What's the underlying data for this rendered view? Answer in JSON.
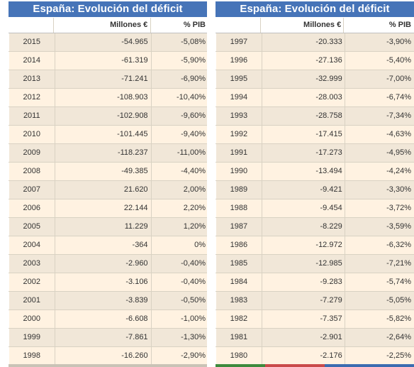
{
  "left_table": {
    "title": "España: Evolución del déficit",
    "columns": [
      "",
      "Millones €",
      "% PIB"
    ],
    "rows": [
      [
        "2015",
        "-54.965",
        "-5,08%"
      ],
      [
        "2014",
        "-61.319",
        "-5,90%"
      ],
      [
        "2013",
        "-71.241",
        "-6,90%"
      ],
      [
        "2012",
        "-108.903",
        "-10,40%"
      ],
      [
        "2011",
        "-102.908",
        "-9,60%"
      ],
      [
        "2010",
        "-101.445",
        "-9,40%"
      ],
      [
        "2009",
        "-118.237",
        "-11,00%"
      ],
      [
        "2008",
        "-49.385",
        "-4,40%"
      ],
      [
        "2007",
        "21.620",
        "2,00%"
      ],
      [
        "2006",
        "22.144",
        "2,20%"
      ],
      [
        "2005",
        "11.229",
        "1,20%"
      ],
      [
        "2004",
        "-364",
        "0%"
      ],
      [
        "2003",
        "-2.960",
        "-0,40%"
      ],
      [
        "2002",
        "-3.106",
        "-0,40%"
      ],
      [
        "2001",
        "-3.839",
        "-0,50%"
      ],
      [
        "2000",
        "-6.608",
        "-1,00%"
      ],
      [
        "1999",
        "-7.861",
        "-1,30%"
      ],
      [
        "1998",
        "-16.260",
        "-2,90%"
      ]
    ]
  },
  "right_table": {
    "title": "España: Evolución del déficit",
    "columns": [
      "",
      "Millones €",
      "% PIB"
    ],
    "rows": [
      [
        "1997",
        "-20.333",
        "-3,90%"
      ],
      [
        "1996",
        "-27.136",
        "-5,40%"
      ],
      [
        "1995",
        "-32.999",
        "-7,00%"
      ],
      [
        "1994",
        "-28.003",
        "-6,74%"
      ],
      [
        "1993",
        "-28.758",
        "-7,34%"
      ],
      [
        "1992",
        "-17.415",
        "-4,63%"
      ],
      [
        "1991",
        "-17.273",
        "-4,95%"
      ],
      [
        "1990",
        "-13.494",
        "-4,24%"
      ],
      [
        "1989",
        "-9.421",
        "-3,30%"
      ],
      [
        "1988",
        "-9.454",
        "-3,72%"
      ],
      [
        "1987",
        "-8.229",
        "-3,59%"
      ],
      [
        "1986",
        "-12.972",
        "-6,32%"
      ],
      [
        "1985",
        "-12.985",
        "-7,21%"
      ],
      [
        "1984",
        "-9.283",
        "-5,74%"
      ],
      [
        "1983",
        "-7.279",
        "-5,05%"
      ],
      [
        "1982",
        "-7.357",
        "-5,82%"
      ],
      [
        "1981",
        "-2.901",
        "-2,64%"
      ],
      [
        "1980",
        "-2.176",
        "-2,25%"
      ]
    ]
  },
  "colors": {
    "header_bg": "#4674b8",
    "row_odd": "#f1e7d8",
    "row_even": "#fff2e1"
  }
}
